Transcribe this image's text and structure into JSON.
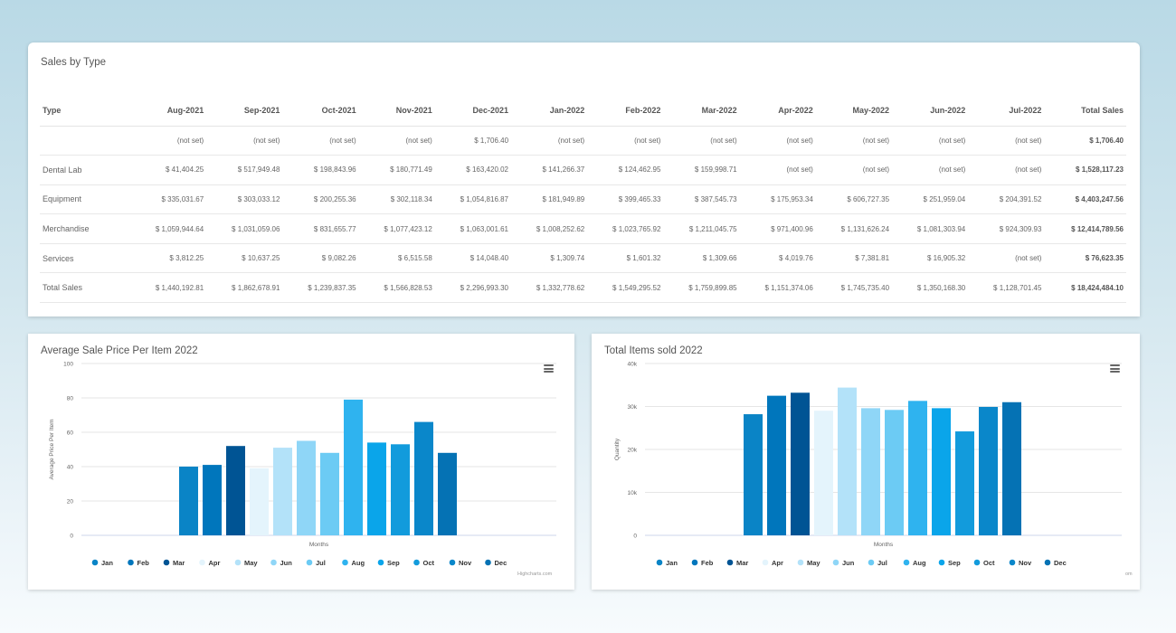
{
  "sales_table": {
    "title": "Sales by Type",
    "columns": [
      "Type",
      "Aug-2021",
      "Sep-2021",
      "Oct-2021",
      "Nov-2021",
      "Dec-2021",
      "Jan-2022",
      "Feb-2022",
      "Mar-2022",
      "Apr-2022",
      "May-2022",
      "Jun-2022",
      "Jul-2022",
      "Total Sales"
    ],
    "rows": [
      [
        "",
        "(not set)",
        "(not set)",
        "(not set)",
        "(not set)",
        "$ 1,706.40",
        "(not set)",
        "(not set)",
        "(not set)",
        "(not set)",
        "(not set)",
        "(not set)",
        "(not set)",
        "$ 1,706.40"
      ],
      [
        "Dental Lab",
        "$ 41,404.25",
        "$ 517,949.48",
        "$ 198,843.96",
        "$ 180,771.49",
        "$ 163,420.02",
        "$ 141,266.37",
        "$ 124,462.95",
        "$ 159,998.71",
        "(not set)",
        "(not set)",
        "(not set)",
        "(not set)",
        "$ 1,528,117.23"
      ],
      [
        "Equipment",
        "$ 335,031.67",
        "$ 303,033.12",
        "$ 200,255.36",
        "$ 302,118.34",
        "$ 1,054,816.87",
        "$ 181,949.89",
        "$ 399,465.33",
        "$ 387,545.73",
        "$ 175,953.34",
        "$ 606,727.35",
        "$ 251,959.04",
        "$ 204,391.52",
        "$ 4,403,247.56"
      ],
      [
        "Merchandise",
        "$ 1,059,944.64",
        "$ 1,031,059.06",
        "$ 831,655.77",
        "$ 1,077,423.12",
        "$ 1,063,001.61",
        "$ 1,008,252.62",
        "$ 1,023,765.92",
        "$ 1,211,045.75",
        "$ 971,400.96",
        "$ 1,131,626.24",
        "$ 1,081,303.94",
        "$ 924,309.93",
        "$ 12,414,789.56"
      ],
      [
        "Services",
        "$ 3,812.25",
        "$ 10,637.25",
        "$ 9,082.26",
        "$ 6,515.58",
        "$ 14,048.40",
        "$ 1,309.74",
        "$ 1,601.32",
        "$ 1,309.66",
        "$ 4,019.76",
        "$ 7,381.81",
        "$ 16,905.32",
        "(not set)",
        "$ 76,623.35"
      ],
      [
        "Total Sales",
        "$ 1,440,192.81",
        "$ 1,862,678.91",
        "$ 1,239,837.35",
        "$ 1,566,828.53",
        "$ 2,296,993.30",
        "$ 1,332,778.62",
        "$ 1,549,295.52",
        "$ 1,759,899.85",
        "$ 1,151,374.06",
        "$ 1,745,735.40",
        "$ 1,350,168.30",
        "$ 1,128,701.45",
        "$ 18,424,484.10"
      ]
    ]
  },
  "credit": "Highcharts.com",
  "credit_partial": "om",
  "chart_data": [
    {
      "type": "bar",
      "title": "Average Sale Price Per Item 2022",
      "xlabel": "Months",
      "ylabel": "Average Price Per Item",
      "ylim": [
        0,
        100
      ],
      "yticks": [
        "0",
        "20",
        "40",
        "60",
        "80",
        "100"
      ],
      "ytick_values": [
        0,
        20,
        40,
        60,
        80,
        100
      ],
      "grid": true,
      "legend": "bottom",
      "series": [
        {
          "name": "Jan",
          "color": "#0a84c6",
          "value": 40
        },
        {
          "name": "Feb",
          "color": "#0076bc",
          "value": 41
        },
        {
          "name": "Mar",
          "color": "#005494",
          "value": 52
        },
        {
          "name": "Apr",
          "color": "#e4f4fc",
          "value": 39
        },
        {
          "name": "May",
          "color": "#b3e2f9",
          "value": 51
        },
        {
          "name": "Jun",
          "color": "#8fd6f7",
          "value": 55
        },
        {
          "name": "Jul",
          "color": "#6ccbf4",
          "value": 48
        },
        {
          "name": "Aug",
          "color": "#2fb3ef",
          "value": 79
        },
        {
          "name": "Sep",
          "color": "#0aa5ea",
          "value": 54
        },
        {
          "name": "Oct",
          "color": "#129bdc",
          "value": 53
        },
        {
          "name": "Nov",
          "color": "#0a87ca",
          "value": 66
        },
        {
          "name": "Dec",
          "color": "#0572b4",
          "value": 48
        }
      ]
    },
    {
      "type": "bar",
      "title": "Total Items sold 2022",
      "xlabel": "Months",
      "ylabel": "Quantity",
      "ylim": [
        0,
        40000
      ],
      "yticks": [
        "0",
        "10k",
        "20k",
        "30k",
        "40k"
      ],
      "ytick_values": [
        0,
        10000,
        20000,
        30000,
        40000
      ],
      "grid": true,
      "legend": "bottom",
      "legend_labels": [
        "Jan",
        "Feb",
        "Mar",
        "Apr",
        "May",
        "Jun",
        "Jul",
        "Aug",
        "Sep",
        "Oct",
        "Nov",
        "Dec"
      ],
      "series": [
        {
          "name": "Jan",
          "color": "#0a84c6",
          "value": 28200
        },
        {
          "name": "Feb",
          "color": "#0076bc",
          "value": 32500
        },
        {
          "name": "Mar",
          "color": "#005494",
          "value": 33200
        },
        {
          "name": "Apr",
          "color": "#e4f4fc",
          "value": 29000
        },
        {
          "name": "May",
          "color": "#b3e2f9",
          "value": 34400
        },
        {
          "name": "Jun",
          "color": "#8fd6f7",
          "value": 29600
        },
        {
          "name": "Jul",
          "color": "#6ccbf4",
          "value": 29200
        },
        {
          "name": "Aug",
          "color": "#2fb3ef",
          "value": 31300
        },
        {
          "name": "Sep",
          "color": "#0aa5ea",
          "value": 29600
        },
        {
          "name": "Oct",
          "color": "#129bdc",
          "value": 24200
        },
        {
          "name": "Nov",
          "color": "#0a87ca",
          "value": 29900
        },
        {
          "name": "Dec",
          "color": "#0572b4",
          "value": 31000
        }
      ]
    }
  ]
}
